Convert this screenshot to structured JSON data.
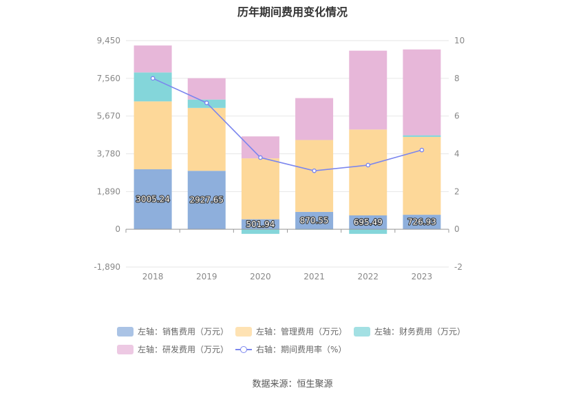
{
  "chart_data": {
    "type": "bar",
    "title": "历年期间费用变化情况",
    "categories": [
      "2018",
      "2019",
      "2020",
      "2021",
      "2022",
      "2023"
    ],
    "left_axis": {
      "ylim": [
        -1890,
        9450
      ],
      "ticks": [
        -1890,
        0,
        1890,
        3780,
        5670,
        7560,
        9450
      ],
      "tick_labels": [
        "-1,890",
        "0",
        "1,890",
        "3,780",
        "5,670",
        "7,560",
        "9,450"
      ]
    },
    "right_axis": {
      "ylim": [
        -2,
        10
      ],
      "ticks": [
        -2,
        0,
        2,
        4,
        6,
        8,
        10
      ],
      "tick_labels": [
        "-2",
        "0",
        "2",
        "4",
        "6",
        "8",
        "10"
      ]
    },
    "series": [
      {
        "name": "左轴：销售费用（万元）",
        "type": "bar",
        "stack": true,
        "color": "#8eafdc",
        "values": [
          3005.24,
          2927.65,
          501.94,
          870.55,
          695.49,
          726.93
        ],
        "labels": [
          "3005.24",
          "2927.65",
          "501.94",
          "870.55",
          "695.49",
          "726.93"
        ]
      },
      {
        "name": "左轴：管理费用（万元）",
        "type": "bar",
        "stack": true,
        "color": "#fdd899",
        "values": [
          3400,
          3150,
          3050,
          3600,
          4300,
          3900
        ]
      },
      {
        "name": "左轴：财务费用（万元）",
        "type": "bar",
        "stack": true,
        "color": "#84d6da",
        "values": [
          1450,
          420,
          -230,
          -20,
          -230,
          80
        ]
      },
      {
        "name": "左轴：研发费用（万元）",
        "type": "bar",
        "stack": true,
        "color": "#e7b7d9",
        "values": [
          1350,
          1070,
          1100,
          2100,
          3950,
          4300
        ]
      },
      {
        "name": "右轴：期间费用率（%）",
        "type": "line",
        "axis": "right",
        "color": "#7b86ee",
        "values": [
          8.0,
          6.7,
          3.8,
          3.1,
          3.4,
          4.2
        ]
      }
    ],
    "grid": true,
    "legend_position": "bottom"
  },
  "source_text": "数据来源：恒生聚源"
}
